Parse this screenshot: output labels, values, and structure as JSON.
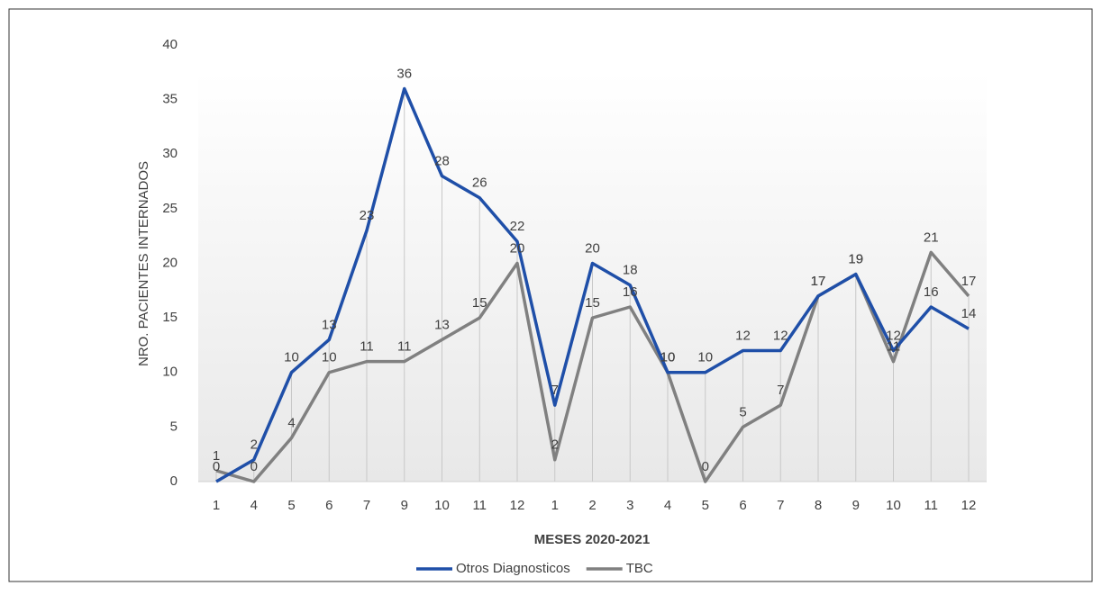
{
  "chart_data": {
    "type": "line",
    "x_label": "MESES 2020-2021",
    "y_label": "NRO. PACIENTES INTERNADOS",
    "categories": [
      "1",
      "4",
      "5",
      "6",
      "7",
      "9",
      "10",
      "11",
      "12",
      "1",
      "2",
      "3",
      "4",
      "5",
      "6",
      "7",
      "8",
      "9",
      "10",
      "11",
      "12"
    ],
    "series": [
      {
        "name": "Otros Diagnosticos",
        "color": "#1f4fa8",
        "values": [
          0,
          2,
          10,
          13,
          23,
          36,
          28,
          26,
          22,
          7,
          20,
          18,
          10,
          10,
          12,
          12,
          17,
          19,
          12,
          16,
          14
        ]
      },
      {
        "name": "TBC",
        "color": "#808080",
        "values": [
          1,
          0,
          4,
          10,
          11,
          11,
          13,
          15,
          20,
          2,
          15,
          16,
          10,
          0,
          5,
          7,
          17,
          19,
          11,
          21,
          17
        ]
      }
    ],
    "ylim": [
      0,
      40
    ],
    "yticks": [
      0,
      5,
      10,
      15,
      20,
      25,
      30,
      35,
      40
    ],
    "legend": "bottom"
  }
}
